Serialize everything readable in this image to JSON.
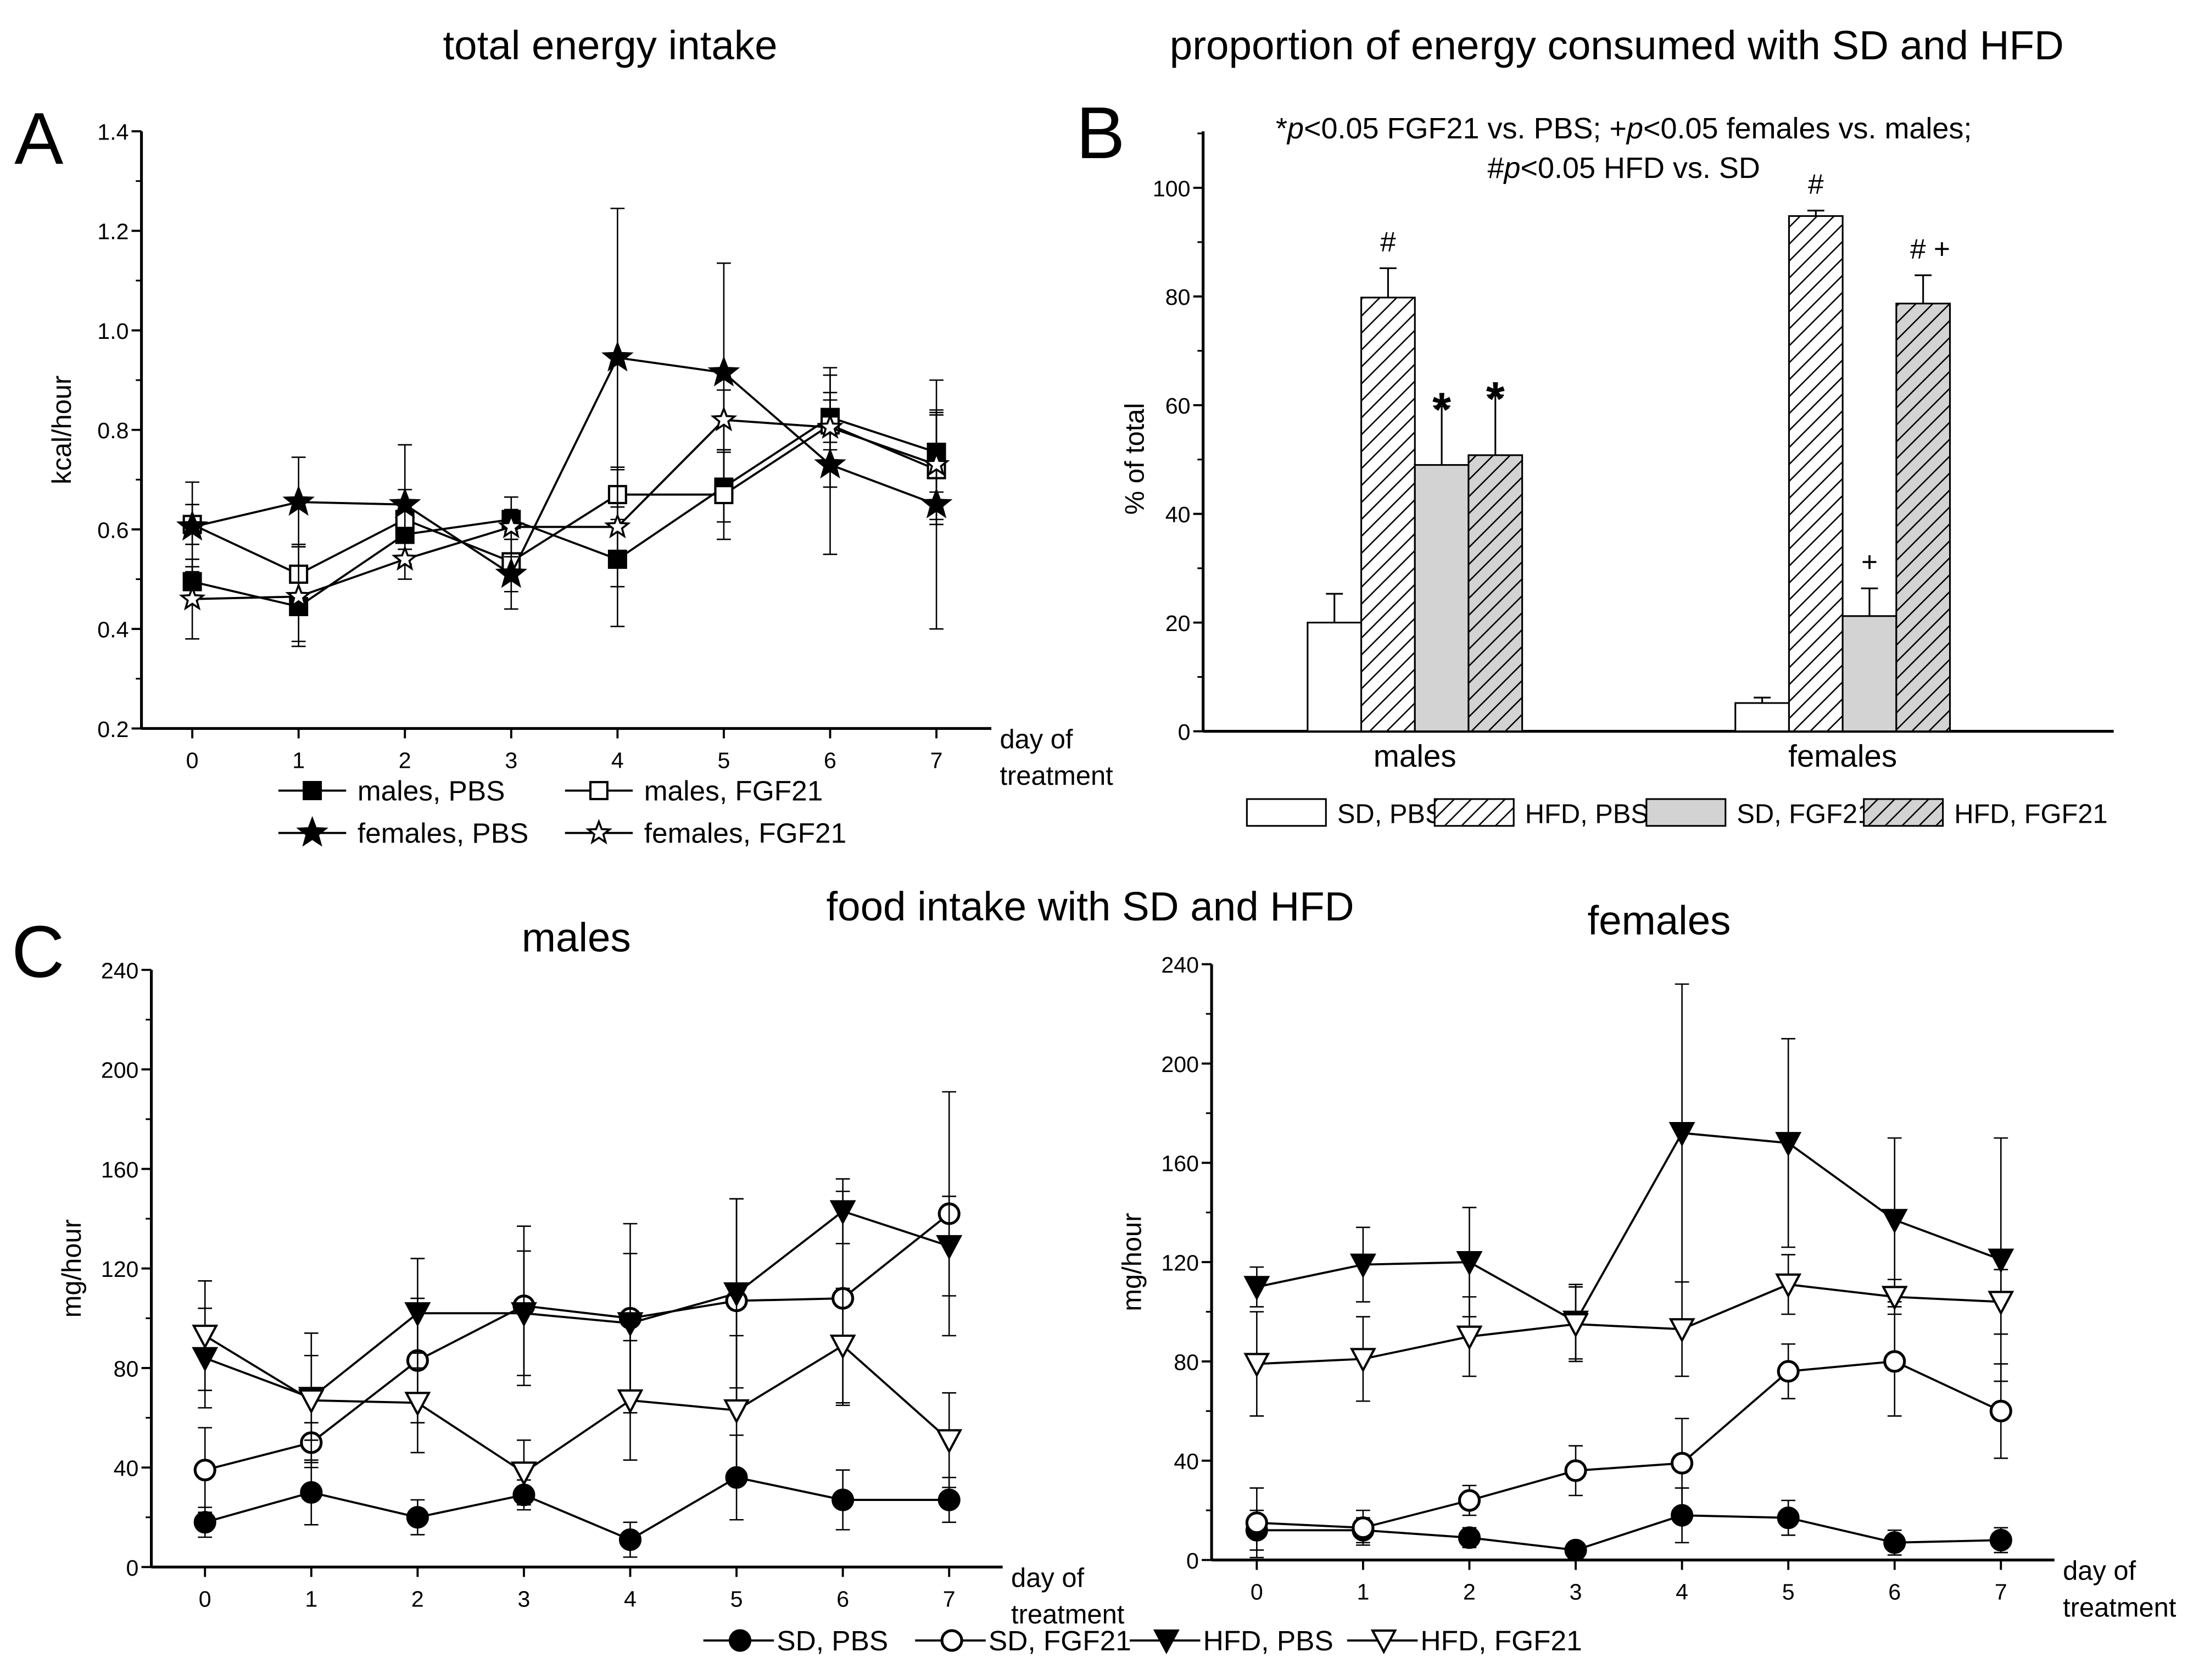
{
  "colors": {
    "ink": "#000000",
    "fgf21_fill": "#d3d3d3",
    "background": "#ffffff"
  },
  "labels": {
    "panel_a": "A",
    "panel_b": "B",
    "panel_c": "C",
    "title_a": "total energy intake",
    "title_b": "proportion of energy consumed with SD and HFD",
    "title_c": "food intake with SD and HFD",
    "subtitle_c_males": "males",
    "subtitle_c_females": "females"
  },
  "chart_data": [
    {
      "type": "line",
      "id": "A",
      "title": "total energy intake",
      "xlabel": [
        "day of",
        "treatment"
      ],
      "ylabel": "kcal/hour",
      "x": [
        0,
        1,
        2,
        3,
        4,
        5,
        6,
        7
      ],
      "ylim": [
        0.2,
        1.4
      ],
      "yticks": [
        "0.2",
        "0.4",
        "0.6",
        "0.8",
        "1.0",
        "1.2",
        "1.4"
      ],
      "legend_placement": "bottom",
      "series": [
        {
          "name": "males, PBS",
          "marker": "square-filled",
          "values": [
            0.495,
            0.445,
            0.59,
            0.62,
            0.54,
            0.685,
            0.825,
            0.755
          ],
          "error": [
            0.03,
            0.07,
            0.03,
            0.02,
            0.135,
            0.07,
            0.05,
            0.08
          ]
        },
        {
          "name": "males, FGF21",
          "marker": "square-open",
          "values": [
            0.61,
            0.51,
            0.62,
            0.535,
            0.67,
            0.67,
            0.81,
            0.72
          ],
          "error": [
            0.04,
            0.06,
            0.06,
            0.06,
            0.05,
            0.09,
            0.05,
            0.11
          ]
        },
        {
          "name": "females, PBS",
          "marker": "star-filled",
          "values": [
            0.605,
            0.655,
            0.65,
            0.51,
            0.945,
            0.915,
            0.73,
            0.65
          ],
          "error": [
            0.09,
            0.09,
            0.12,
            0.07,
            0.3,
            0.22,
            0.18,
            0.25
          ]
        },
        {
          "name": "females, FGF21",
          "marker": "star-open",
          "values": [
            0.46,
            0.465,
            0.54,
            0.605,
            0.605,
            0.82,
            0.805,
            0.73
          ],
          "error": [
            0.08,
            0.1,
            0.04,
            0.06,
            0.12,
            0.06,
            0.12,
            0.11
          ]
        }
      ]
    },
    {
      "type": "bar",
      "id": "B",
      "title": "proportion of energy consumed with SD and HFD",
      "note": [
        [
          {
            "t": "*"
          },
          {
            "t": "p",
            "italic": true
          },
          {
            "t": "<0.05 FGF21 vs. PBS; +"
          },
          {
            "t": "p",
            "italic": true
          },
          {
            "t": "<0.05 females vs. males;"
          }
        ],
        [
          {
            "t": "#"
          },
          {
            "t": "p",
            "italic": true
          },
          {
            "t": "<0.05 HFD vs. SD"
          }
        ]
      ],
      "ylabel": "% of total",
      "categories": [
        "males",
        "females"
      ],
      "ylim": [
        0,
        110
      ],
      "yticks": [
        "0",
        "20",
        "40",
        "60",
        "80",
        "100"
      ],
      "legend_placement": "bottom",
      "series": [
        {
          "name": "SD, PBS",
          "fill": "white",
          "values": [
            20.0,
            5.2
          ],
          "error": [
            5.3,
            1.0
          ],
          "marks": [
            "",
            ""
          ]
        },
        {
          "name": "HFD, PBS",
          "fill": "hatch-white",
          "values": [
            79.8,
            94.8
          ],
          "error": [
            5.4,
            1.0
          ],
          "marks": [
            "#",
            "#"
          ]
        },
        {
          "name": "SD, FGF21",
          "fill": "gray",
          "values": [
            49.0,
            21.2
          ],
          "error": [
            10.8,
            5.1
          ],
          "marks": [
            "*",
            "+"
          ]
        },
        {
          "name": "HFD, FGF21",
          "fill": "hatch-gray",
          "values": [
            50.8,
            78.7
          ],
          "error": [
            11.0,
            5.2
          ],
          "marks": [
            "*",
            "# +"
          ]
        }
      ]
    },
    {
      "type": "line",
      "id": "C-males",
      "title": "males",
      "xlabel": [
        "day of",
        "treatment"
      ],
      "ylabel": "mg/hour",
      "x": [
        0,
        1,
        2,
        3,
        4,
        5,
        6,
        7
      ],
      "ylim": [
        0,
        240
      ],
      "yticks": [
        "0",
        "40",
        "80",
        "120",
        "160",
        "200",
        "240"
      ],
      "series": [
        {
          "name": "SD, PBS",
          "marker": "circle-filled",
          "values": [
            18,
            30,
            20,
            29,
            11,
            36,
            27,
            27
          ],
          "error": [
            6,
            13,
            7,
            6,
            7,
            17,
            12,
            9
          ]
        },
        {
          "name": "SD, FGF21",
          "marker": "circle-open",
          "values": [
            39,
            50,
            83,
            105,
            100,
            107,
            108,
            142
          ],
          "error": [
            17,
            8,
            25,
            32,
            38,
            41,
            43,
            49
          ]
        },
        {
          "name": "HFD, PBS",
          "marker": "triangle-down-filled",
          "values": [
            84,
            68,
            102,
            102,
            98,
            110,
            143,
            129
          ],
          "error": [
            20,
            17,
            22,
            25,
            28,
            38,
            13,
            20
          ]
        },
        {
          "name": "HFD, FGF21",
          "marker": "triangle-down-open",
          "values": [
            93,
            67,
            66,
            38,
            67,
            63,
            89,
            51
          ],
          "error": [
            22,
            27,
            20,
            13,
            24,
            30,
            23,
            19
          ]
        }
      ]
    },
    {
      "type": "line",
      "id": "C-females",
      "title": "females",
      "xlabel": [
        "day of",
        "treatment"
      ],
      "ylabel": "mg/hour",
      "x": [
        0,
        1,
        2,
        3,
        4,
        5,
        6,
        7
      ],
      "ylim": [
        0,
        240
      ],
      "yticks": [
        "0",
        "40",
        "80",
        "120",
        "160",
        "200",
        "240"
      ],
      "legend_placement": "bottom",
      "series": [
        {
          "name": "SD, PBS",
          "marker": "circle-filled",
          "values": [
            12,
            12,
            9,
            4,
            18,
            17,
            7,
            8
          ],
          "error": [
            8,
            5,
            4,
            2,
            11,
            7,
            5,
            5
          ]
        },
        {
          "name": "SD, FGF21",
          "marker": "circle-open",
          "values": [
            15,
            13,
            24,
            36,
            39,
            76,
            80,
            60
          ],
          "error": [
            14,
            7,
            6,
            10,
            18,
            11,
            22,
            19
          ]
        },
        {
          "name": "HFD, PBS",
          "marker": "triangle-down-filled",
          "values": [
            110,
            119,
            120,
            96,
            172,
            168,
            137,
            121
          ],
          "error": [
            8,
            15,
            22,
            15,
            60,
            42,
            33,
            49
          ]
        },
        {
          "name": "HFD, FGF21",
          "marker": "triangle-down-open",
          "values": [
            79,
            81,
            90,
            95,
            93,
            111,
            106,
            104
          ],
          "error": [
            21,
            17,
            16,
            15,
            19,
            12,
            7,
            13
          ]
        }
      ]
    }
  ]
}
